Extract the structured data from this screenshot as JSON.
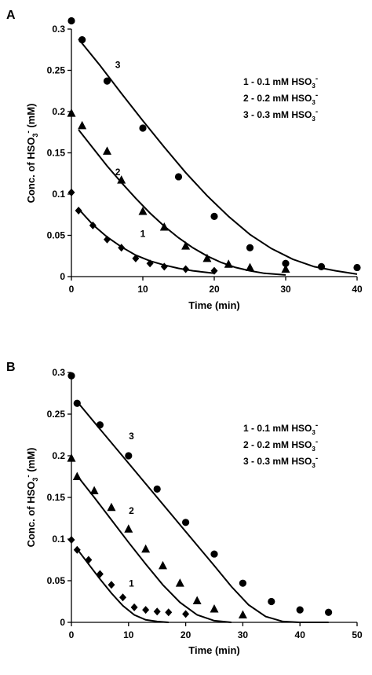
{
  "chart_data": [
    {
      "type": "scatter",
      "panel_label": "A",
      "xlabel": "Time (min)",
      "ylabel_main": "Conc. of HSO",
      "ylabel_sub": "3",
      "ylabel_sup": "-",
      "ylabel_unit": " (mM)",
      "xlim": [
        0,
        40
      ],
      "ylim": [
        0,
        0.3
      ],
      "xticks": [
        0,
        10,
        20,
        30,
        40
      ],
      "yticks": [
        0,
        0.05,
        0.1,
        0.15,
        0.2,
        0.25,
        0.3
      ],
      "ytick_labels": [
        "0",
        "0.05",
        "0.1",
        "0.15",
        "0.2",
        "0.25",
        "0.3"
      ],
      "grid": false,
      "legend_position": "top-right",
      "legend": [
        {
          "text": "1 - 0.1 mM HSO",
          "sub": "3",
          "sup": "-"
        },
        {
          "text": "2 - 0.2 mM HSO",
          "sub": "3",
          "sup": "-"
        },
        {
          "text": "3 - 0.3 mM HSO",
          "sub": "3",
          "sup": "-"
        }
      ],
      "series": [
        {
          "name": "1",
          "marker": "diamond",
          "label_at": [
            10,
            0.048
          ],
          "points": [
            [
              0,
              0.102
            ],
            [
              1,
              0.08
            ],
            [
              3,
              0.062
            ],
            [
              5,
              0.045
            ],
            [
              7,
              0.035
            ],
            [
              9,
              0.022
            ],
            [
              11,
              0.016
            ],
            [
              13,
              0.012
            ],
            [
              16,
              0.009
            ],
            [
              20,
              0.007
            ]
          ],
          "curve": [
            [
              1,
              0.082
            ],
            [
              3,
              0.063
            ],
            [
              5,
              0.048
            ],
            [
              7,
              0.036
            ],
            [
              9,
              0.026
            ],
            [
              11,
              0.019
            ],
            [
              13,
              0.014
            ],
            [
              15,
              0.01
            ],
            [
              17,
              0.007
            ],
            [
              20,
              0.004
            ]
          ]
        },
        {
          "name": "2",
          "marker": "triangle",
          "label_at": [
            6.5,
            0.123
          ],
          "points": [
            [
              0,
              0.198
            ],
            [
              1.5,
              0.183
            ],
            [
              5,
              0.152
            ],
            [
              7,
              0.117
            ],
            [
              10,
              0.079
            ],
            [
              13,
              0.06
            ],
            [
              16,
              0.037
            ],
            [
              19,
              0.022
            ],
            [
              22,
              0.015
            ],
            [
              25,
              0.011
            ],
            [
              30,
              0.009
            ]
          ],
          "curve": [
            [
              1,
              0.178
            ],
            [
              3,
              0.156
            ],
            [
              5,
              0.134
            ],
            [
              7,
              0.114
            ],
            [
              9,
              0.095
            ],
            [
              11,
              0.077
            ],
            [
              13,
              0.061
            ],
            [
              15,
              0.047
            ],
            [
              17,
              0.035
            ],
            [
              19,
              0.025
            ],
            [
              21,
              0.017
            ],
            [
              23,
              0.011
            ],
            [
              25,
              0.007
            ],
            [
              27,
              0.004
            ],
            [
              30,
              0.002
            ]
          ]
        },
        {
          "name": "3",
          "marker": "circle",
          "label_at": [
            6.5,
            0.253
          ],
          "points": [
            [
              0,
              0.31
            ],
            [
              1.5,
              0.287
            ],
            [
              5,
              0.237
            ],
            [
              10,
              0.18
            ],
            [
              15,
              0.121
            ],
            [
              20,
              0.073
            ],
            [
              25,
              0.035
            ],
            [
              30,
              0.016
            ],
            [
              35,
              0.012
            ],
            [
              40,
              0.011
            ]
          ],
          "curve": [
            [
              1,
              0.288
            ],
            [
              4,
              0.256
            ],
            [
              7,
              0.222
            ],
            [
              10,
              0.189
            ],
            [
              13,
              0.157
            ],
            [
              16,
              0.126
            ],
            [
              19,
              0.098
            ],
            [
              22,
              0.073
            ],
            [
              25,
              0.051
            ],
            [
              28,
              0.034
            ],
            [
              31,
              0.021
            ],
            [
              34,
              0.012
            ],
            [
              37,
              0.007
            ],
            [
              40,
              0.003
            ]
          ]
        }
      ]
    },
    {
      "type": "scatter",
      "panel_label": "B",
      "xlabel": "Time (min)",
      "ylabel_main": "Conc. of HSO",
      "ylabel_sub": "3",
      "ylabel_sup": "-",
      "ylabel_unit": " (mM)",
      "xlim": [
        0,
        50
      ],
      "ylim": [
        0,
        0.3
      ],
      "xticks": [
        0,
        10,
        20,
        30,
        40,
        50
      ],
      "yticks": [
        0,
        0.05,
        0.1,
        0.15,
        0.2,
        0.25,
        0.3
      ],
      "ytick_labels": [
        "0",
        "0.05",
        "0.1",
        "0.15",
        "0.2",
        "0.25",
        "0.3"
      ],
      "grid": false,
      "legend_position": "top-right",
      "legend": [
        {
          "text": "1 - 0.1 mM HSO",
          "sub": "3",
          "sup": "-"
        },
        {
          "text": "2 - 0.2 mM HSO",
          "sub": "3",
          "sup": "-"
        },
        {
          "text": "3 - 0.3 mM HSO",
          "sub": "3",
          "sup": "-"
        }
      ],
      "series": [
        {
          "name": "1",
          "marker": "diamond",
          "label_at": [
            10.5,
            0.043
          ],
          "points": [
            [
              0,
              0.099
            ],
            [
              1,
              0.087
            ],
            [
              3,
              0.075
            ],
            [
              5,
              0.058
            ],
            [
              7,
              0.045
            ],
            [
              9,
              0.03
            ],
            [
              11,
              0.018
            ],
            [
              13,
              0.015
            ],
            [
              15,
              0.013
            ],
            [
              17,
              0.012
            ],
            [
              20,
              0.01
            ]
          ],
          "curve": [
            [
              1,
              0.088
            ],
            [
              3,
              0.07
            ],
            [
              5,
              0.052
            ],
            [
              7,
              0.035
            ],
            [
              9,
              0.02
            ],
            [
              11,
              0.009
            ],
            [
              13,
              0.003
            ],
            [
              15,
              0.001
            ],
            [
              17,
              0
            ]
          ]
        },
        {
          "name": "2",
          "marker": "triangle",
          "label_at": [
            10.5,
            0.13
          ],
          "points": [
            [
              0,
              0.197
            ],
            [
              1,
              0.175
            ],
            [
              4,
              0.158
            ],
            [
              7,
              0.138
            ],
            [
              10,
              0.112
            ],
            [
              13,
              0.088
            ],
            [
              16,
              0.068
            ],
            [
              19,
              0.047
            ],
            [
              22,
              0.026
            ],
            [
              25,
              0.016
            ],
            [
              30,
              0.009
            ]
          ],
          "curve": [
            [
              1,
              0.176
            ],
            [
              4,
              0.15
            ],
            [
              7,
              0.123
            ],
            [
              10,
              0.096
            ],
            [
              13,
              0.07
            ],
            [
              16,
              0.045
            ],
            [
              19,
              0.024
            ],
            [
              22,
              0.009
            ],
            [
              25,
              0.002
            ],
            [
              28,
              0
            ]
          ]
        },
        {
          "name": "3",
          "marker": "circle",
          "label_at": [
            10.5,
            0.22
          ],
          "points": [
            [
              0,
              0.296
            ],
            [
              1,
              0.263
            ],
            [
              5,
              0.237
            ],
            [
              10,
              0.2
            ],
            [
              15,
              0.16
            ],
            [
              20,
              0.12
            ],
            [
              25,
              0.082
            ],
            [
              30,
              0.047
            ],
            [
              35,
              0.025
            ],
            [
              40,
              0.015
            ],
            [
              45,
              0.012
            ]
          ],
          "curve": [
            [
              1,
              0.265
            ],
            [
              5,
              0.232
            ],
            [
              10,
              0.191
            ],
            [
              15,
              0.15
            ],
            [
              20,
              0.109
            ],
            [
              25,
              0.068
            ],
            [
              28,
              0.043
            ],
            [
              31,
              0.021
            ],
            [
              34,
              0.007
            ],
            [
              37,
              0.001
            ],
            [
              40,
              0
            ],
            [
              45,
              0
            ]
          ]
        }
      ]
    }
  ]
}
